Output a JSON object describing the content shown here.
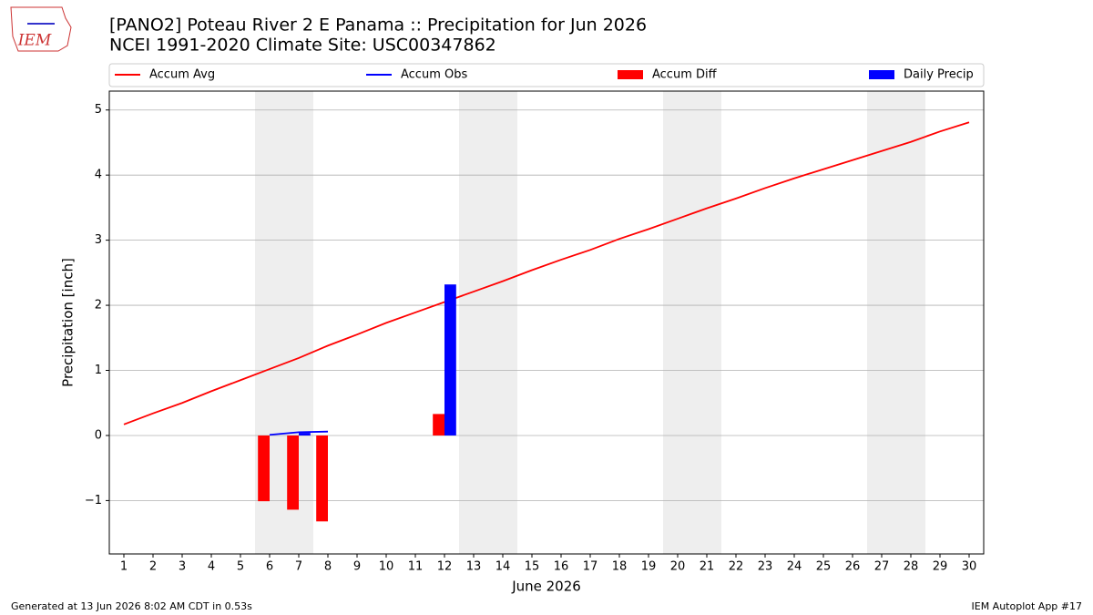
{
  "logo": "IEM",
  "chart_data": {
    "type": "combo",
    "title": "[PANO2] Poteau River 2 E Panama :: Precipitation for Jun 2026",
    "subtitle": "NCEI 1991-2020 Climate Site: USC00347862",
    "y_label": "Precipitation [inch]",
    "x_label": "June 2026",
    "x": [
      1,
      2,
      3,
      4,
      5,
      6,
      7,
      8,
      9,
      10,
      11,
      12,
      13,
      14,
      15,
      16,
      17,
      18,
      19,
      20,
      21,
      22,
      23,
      24,
      25,
      26,
      27,
      28,
      29,
      30
    ],
    "xlim": [
      0.5,
      30.5
    ],
    "xticks": [
      1,
      2,
      3,
      4,
      5,
      6,
      7,
      8,
      9,
      10,
      11,
      12,
      13,
      14,
      15,
      16,
      17,
      18,
      19,
      20,
      21,
      22,
      23,
      24,
      25,
      26,
      27,
      28,
      29,
      30
    ],
    "ylim": [
      -1.82,
      5.29
    ],
    "yticks": [
      {
        "value": -1,
        "label": "−1"
      },
      0,
      1,
      2,
      3,
      4,
      5
    ],
    "grid": true,
    "shaded_x": [
      [
        5.5,
        7.5
      ],
      [
        12.5,
        14.5
      ],
      [
        19.5,
        21.5
      ],
      [
        26.5,
        28.5
      ]
    ],
    "series": [
      {
        "name": "Accum Avg",
        "kind": "line",
        "color": "#ff0000",
        "values": [
          0.17,
          0.34,
          0.5,
          0.68,
          0.85,
          1.02,
          1.19,
          1.38,
          1.55,
          1.73,
          1.89,
          2.05,
          2.21,
          2.37,
          2.54,
          2.7,
          2.85,
          3.02,
          3.17,
          3.33,
          3.49,
          3.64,
          3.8,
          3.95,
          4.09,
          4.23,
          4.37,
          4.51,
          4.67,
          4.81
        ]
      },
      {
        "name": "Accum Obs",
        "kind": "line",
        "color": "#0000ff",
        "values": [
          null,
          null,
          null,
          null,
          null,
          0.01,
          0.05,
          0.06,
          null,
          null,
          null,
          null,
          null,
          null,
          null,
          null,
          null,
          null,
          null,
          null,
          null,
          null,
          null,
          null,
          null,
          null,
          null,
          null,
          null,
          null
        ]
      },
      {
        "name": "Accum Diff",
        "kind": "bar",
        "color": "#ff0000",
        "values": [
          null,
          null,
          null,
          null,
          null,
          -1.01,
          -1.14,
          -1.32,
          null,
          null,
          null,
          0.33,
          null,
          null,
          null,
          null,
          null,
          null,
          null,
          null,
          null,
          null,
          null,
          null,
          null,
          null,
          null,
          null,
          null,
          null
        ]
      },
      {
        "name": "Daily Precip",
        "kind": "bar",
        "color": "#0000ff",
        "values": [
          null,
          null,
          null,
          null,
          null,
          null,
          0.04,
          null,
          null,
          null,
          null,
          2.32,
          null,
          null,
          null,
          null,
          null,
          null,
          null,
          null,
          null,
          null,
          null,
          null,
          null,
          null,
          null,
          null,
          null,
          null
        ]
      }
    ],
    "footer_left": "Generated at 13 Jun 2026 8:02 AM CDT in 0.53s",
    "footer_right": "IEM Autoplot App #17"
  }
}
